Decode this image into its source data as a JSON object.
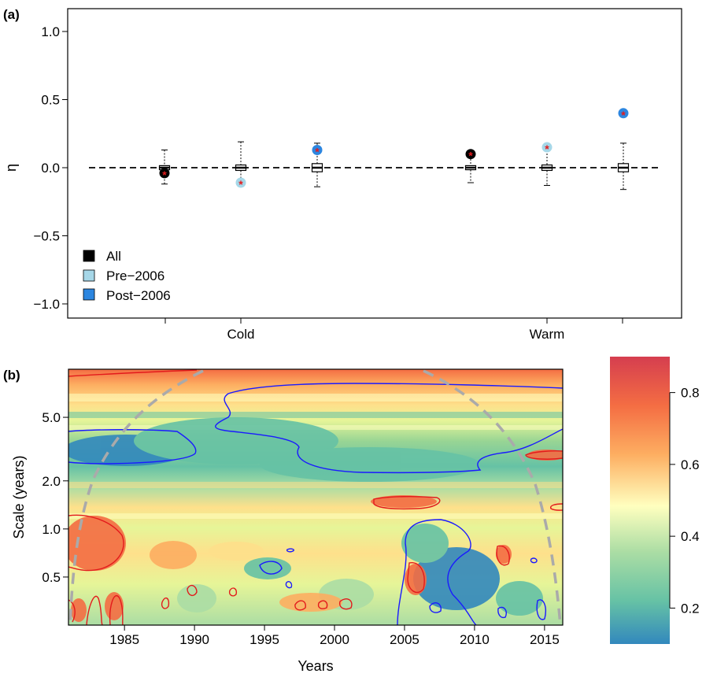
{
  "panel_a": {
    "label": "(a)",
    "legend": {
      "items": [
        {
          "label": "All",
          "color": "#000000"
        },
        {
          "label": "Pre−2006",
          "color": "#a6d7e8"
        },
        {
          "label": "Post−2006",
          "color": "#2c86e0"
        }
      ]
    }
  },
  "panel_b": {
    "label": "(b)"
  },
  "chart_data": [
    {
      "type": "box",
      "panel": "(a)",
      "ylabel": "η",
      "xlabel": "",
      "ylim": [
        -1.0,
        1.0
      ],
      "yticks": [
        "−1.0",
        "−0.5",
        "0.0",
        "0.5",
        "1.0"
      ],
      "categories": [
        "Cold",
        "Warm"
      ],
      "reference_line": 0.0,
      "series": [
        {
          "name": "All",
          "color": "#000000",
          "boxes": [
            {
              "group": "Cold",
              "median": 0.0,
              "q1": -0.015,
              "q3": 0.015,
              "whisker_low": -0.12,
              "whisker_high": 0.13,
              "observed": -0.04
            },
            {
              "group": "Warm",
              "median": 0.0,
              "q1": -0.015,
              "q3": 0.015,
              "whisker_low": -0.11,
              "whisker_high": 0.11,
              "observed": 0.1
            }
          ]
        },
        {
          "name": "Pre−2006",
          "color": "#a6d7e8",
          "boxes": [
            {
              "group": "Cold",
              "median": 0.0,
              "q1": -0.02,
              "q3": 0.02,
              "whisker_low": -0.11,
              "whisker_high": 0.19,
              "observed": -0.11
            },
            {
              "group": "Warm",
              "median": 0.0,
              "q1": -0.02,
              "q3": 0.02,
              "whisker_low": -0.13,
              "whisker_high": 0.15,
              "observed": 0.15
            }
          ]
        },
        {
          "name": "Post−2006",
          "color": "#2c86e0",
          "boxes": [
            {
              "group": "Cold",
              "median": 0.0,
              "q1": -0.03,
              "q3": 0.03,
              "whisker_low": -0.14,
              "whisker_high": 0.18,
              "observed": 0.13
            },
            {
              "group": "Warm",
              "median": 0.0,
              "q1": -0.03,
              "q3": 0.03,
              "whisker_low": -0.16,
              "whisker_high": 0.18,
              "observed": 0.4
            }
          ]
        }
      ],
      "significance_marker": "*",
      "grid": false,
      "legend_position": "bottom-left"
    },
    {
      "type": "heatmap",
      "panel": "(b)",
      "xlabel": "Years",
      "ylabel": "Scale (years)",
      "xlim": [
        1981,
        2016.3
      ],
      "xticks": [
        "1985",
        "1990",
        "1995",
        "2000",
        "2005",
        "2010",
        "2015"
      ],
      "ylim": [
        0.25,
        10
      ],
      "yscale": "log",
      "yticks": [
        "0.5",
        "1.0",
        "2.0",
        "5.0"
      ],
      "colorbar": {
        "range": [
          0.1,
          0.9
        ],
        "ticks": [
          "0.2",
          "0.4",
          "0.6",
          "0.8"
        ],
        "colormap": "spectral"
      },
      "regions_high_value_contoured_red": [
        {
          "years": [
            1981,
            1985.5
          ],
          "scale": [
            0.7,
            1.3
          ]
        },
        {
          "years": [
            2003,
            2008
          ],
          "scale": [
            1.4,
            1.7
          ]
        },
        {
          "years": [
            2013,
            2016.3
          ],
          "scale": [
            2.6,
            3.3
          ]
        },
        {
          "years": [
            1981,
            1991
          ],
          "scale": [
            9,
            10
          ]
        }
      ],
      "regions_low_value_contoured_blue": [
        {
          "years": [
            1981,
            1991
          ],
          "scale": [
            2.6,
            4.3
          ]
        },
        {
          "years": [
            1991,
            2016.3
          ],
          "scale": [
            2.3,
            8.5
          ]
        },
        {
          "years": [
            2005,
            2013
          ],
          "scale": [
            0.25,
            1.1
          ]
        }
      ],
      "cone_of_influence": "dashed grey"
    }
  ]
}
